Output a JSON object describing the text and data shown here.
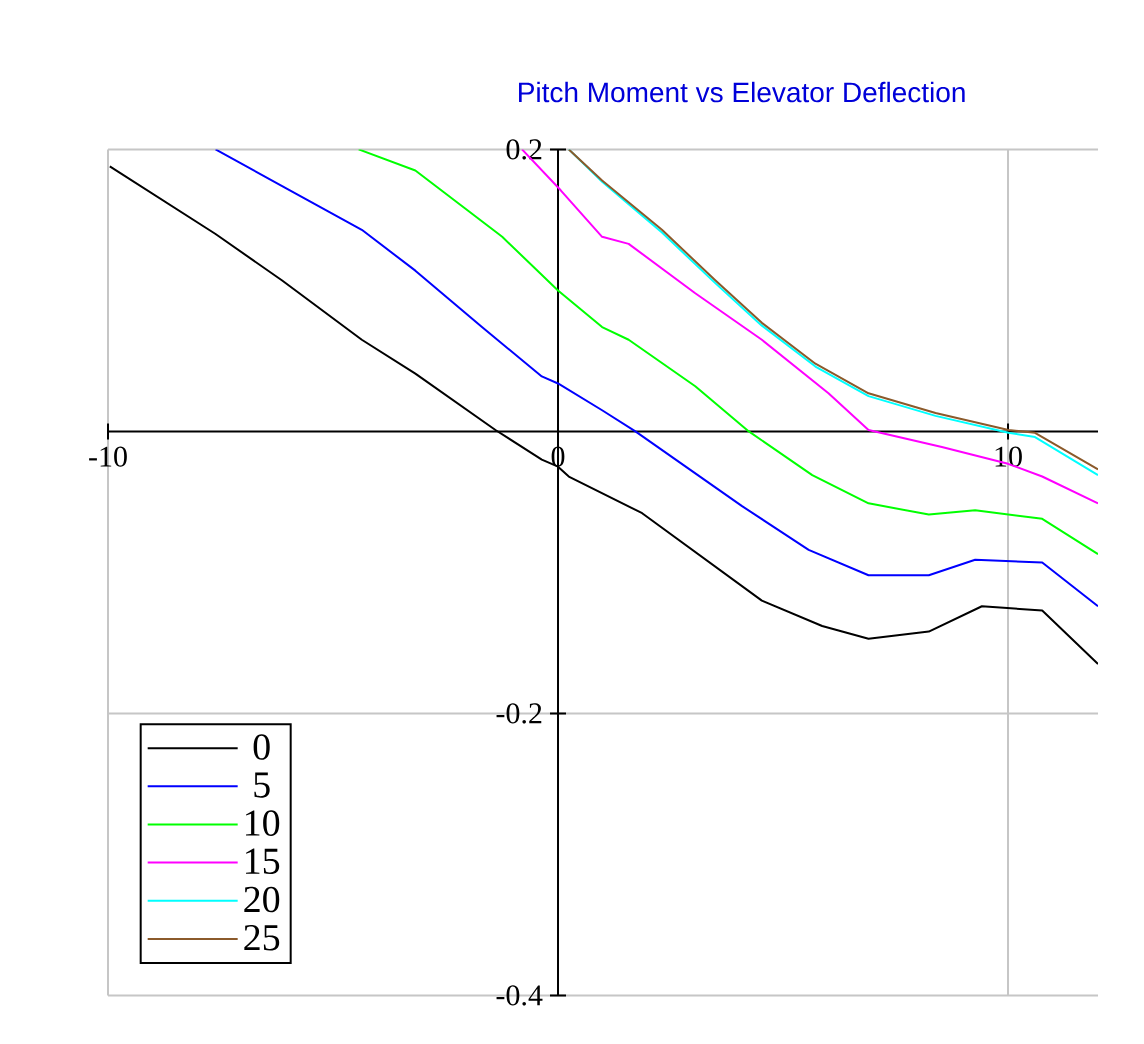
{
  "chart_data": {
    "type": "line",
    "title": "Pitch Moment vs Elevator Deflection",
    "xlim": [
      -10,
      12
    ],
    "ylim": [
      -0.4,
      0.2
    ],
    "xticks": [
      -10,
      0,
      10
    ],
    "yticks": [
      -0.4,
      -0.2,
      0.2
    ],
    "grid": true,
    "legend": "bottom left",
    "series": [
      {
        "name": "0",
        "color": "#000000",
        "x": [
          -9.96,
          -7.61,
          -6.13,
          -4.36,
          -3.17,
          -1.39,
          -0.36,
          0,
          0.24,
          1.87,
          4.53,
          5.87,
          6.9,
          8.24,
          9.42,
          10.76,
          12
        ],
        "values": [
          0.188,
          0.14,
          0.107,
          0.065,
          0.041,
          0.001,
          -0.02,
          -0.025,
          -0.032,
          -0.058,
          -0.12,
          -0.138,
          -0.147,
          -0.142,
          -0.124,
          -0.127,
          -0.165
        ]
      },
      {
        "name": "5",
        "color": "#0000ff",
        "x": [
          -7.61,
          -6.13,
          -4.36,
          -3.17,
          -1.69,
          -0.36,
          0,
          0.98,
          1.72,
          4.09,
          5.57,
          6.9,
          8.24,
          9.27,
          10.76,
          12
        ],
        "values": [
          0.2,
          0.174,
          0.143,
          0.114,
          0.074,
          0.039,
          0.034,
          0.015,
          0,
          -0.053,
          -0.084,
          -0.102,
          -0.102,
          -0.091,
          -0.093,
          -0.124
        ]
      },
      {
        "name": "10",
        "color": "#00ff00",
        "x": [
          -4.43,
          -3.17,
          -1.24,
          0,
          0.98,
          1.57,
          3.05,
          4.24,
          5.65,
          6.9,
          8.24,
          9.27,
          10.76,
          12
        ],
        "values": [
          0.2,
          0.185,
          0.138,
          0.1,
          0.074,
          0.065,
          0.032,
          0,
          -0.031,
          -0.051,
          -0.059,
          -0.056,
          -0.062,
          -0.087
        ]
      },
      {
        "name": "15",
        "color": "#ff00ff",
        "x": [
          -0.8,
          0.06,
          0.98,
          1.57,
          3.05,
          4.53,
          6.01,
          6.9,
          8.53,
          10,
          10.76,
          12
        ],
        "values": [
          0.2,
          0.171,
          0.138,
          0.133,
          0.098,
          0.065,
          0.027,
          0.001,
          -0.011,
          -0.023,
          -0.032,
          -0.051
        ]
      },
      {
        "name": "20",
        "color": "#00ffff",
        "x": [
          0.24,
          0.98,
          2.31,
          3.5,
          4.53,
          5.72,
          6.9,
          8.39,
          10.01,
          10.6,
          12
        ],
        "values": [
          0.2,
          0.177,
          0.141,
          0.105,
          0.075,
          0.046,
          0.025,
          0.011,
          -0.001,
          -0.004,
          -0.031
        ]
      },
      {
        "name": "25",
        "color": "#8b5a2b",
        "x": [
          0.24,
          0.98,
          2.31,
          3.5,
          4.53,
          5.72,
          6.9,
          8.39,
          10.01,
          10.6,
          12
        ],
        "values": [
          0.2,
          0.178,
          0.143,
          0.107,
          0.077,
          0.048,
          0.027,
          0.013,
          0.001,
          -0.001,
          -0.027
        ]
      }
    ]
  }
}
